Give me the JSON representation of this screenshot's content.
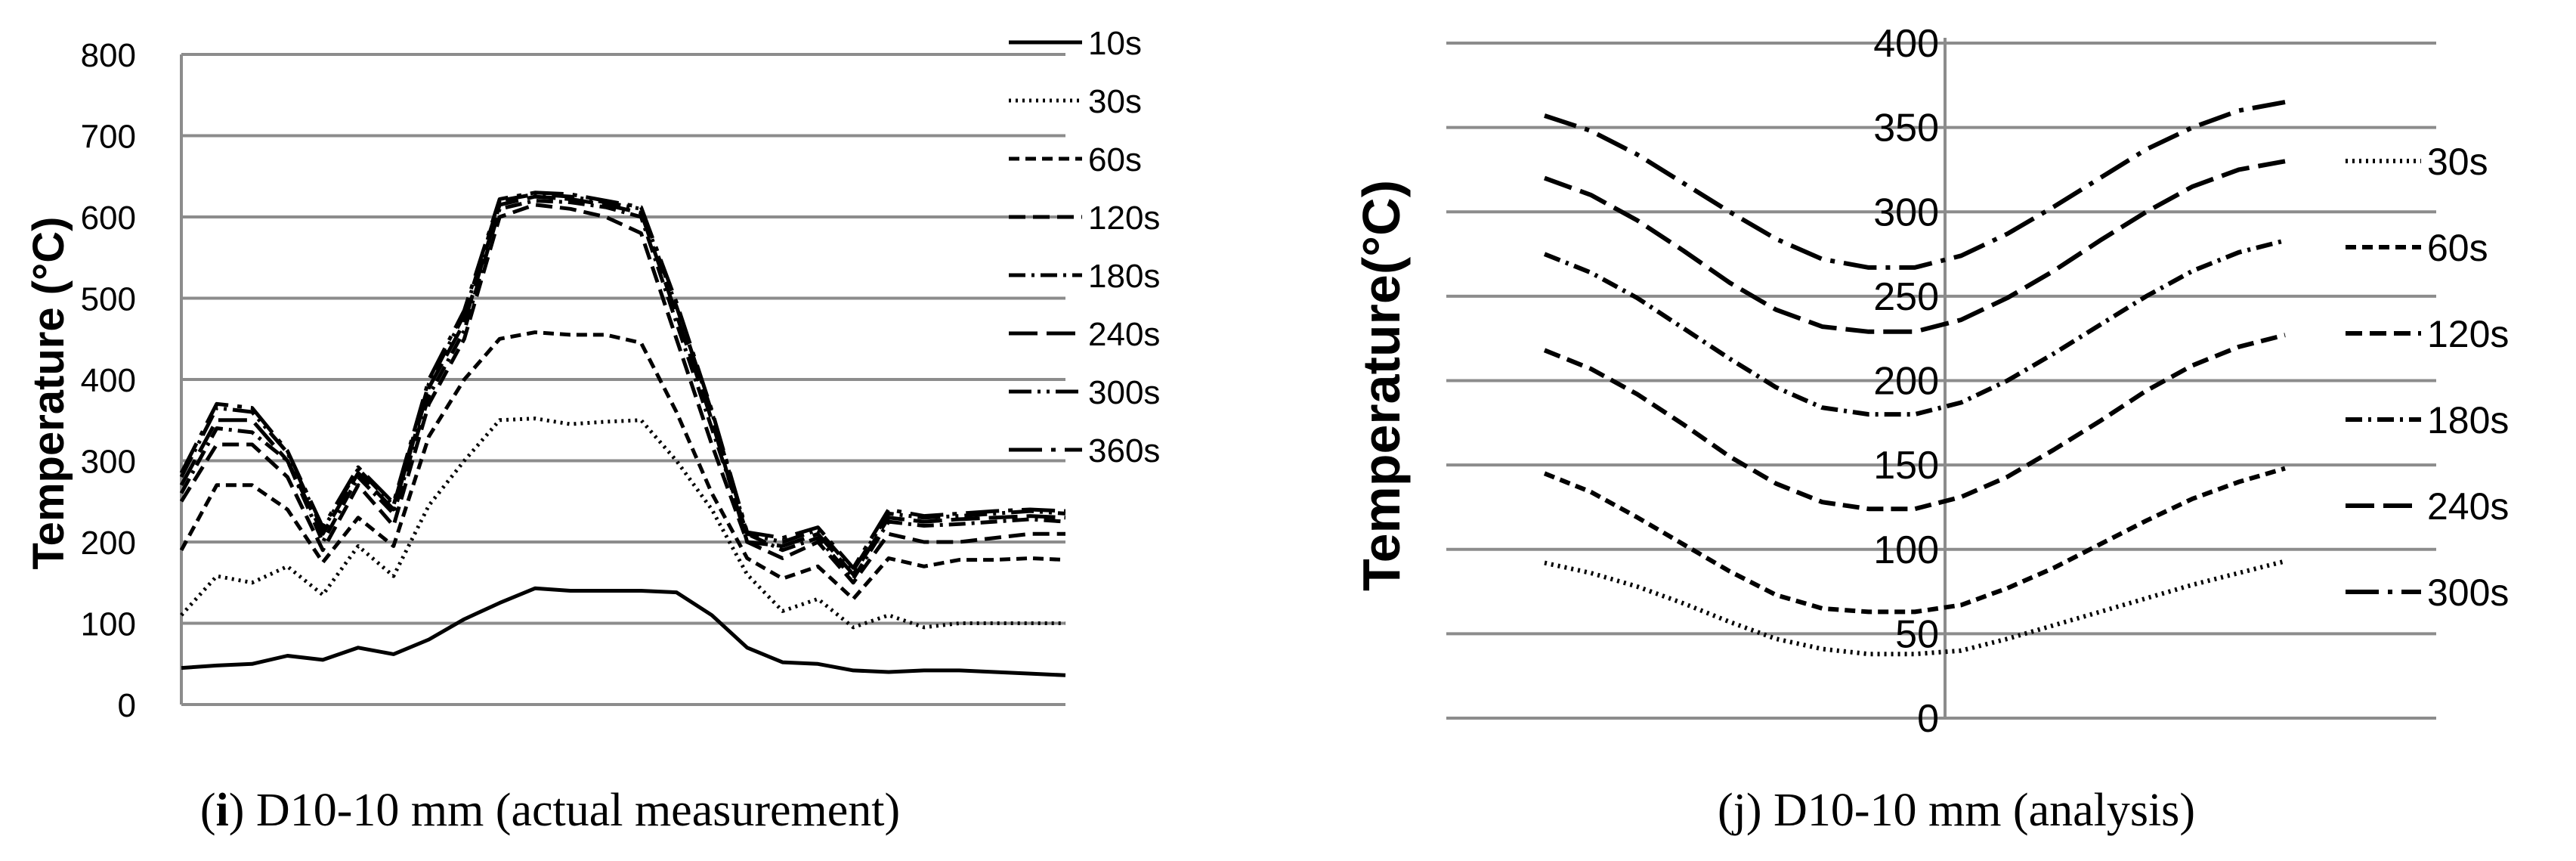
{
  "chart_data": [
    {
      "type": "line",
      "caption_prefix": "i",
      "caption": " D10-10 mm (actual measurement)",
      "ylabel": "Temperature (°C)",
      "xlabel": "",
      "ylim": [
        0,
        800
      ],
      "yticks": [
        "0",
        "100",
        "200",
        "300",
        "400",
        "500",
        "600",
        "700",
        "800"
      ],
      "x": [
        0,
        4,
        8,
        12,
        16,
        20,
        24,
        28,
        32,
        36,
        40,
        44,
        48,
        52,
        56,
        60,
        64,
        68,
        72,
        76,
        80,
        84,
        88,
        92,
        96,
        100
      ],
      "grid": true,
      "legend_position": "right",
      "series": [
        {
          "name": "10s",
          "dash": "solid",
          "values": [
            45,
            48,
            50,
            60,
            55,
            70,
            62,
            80,
            105,
            125,
            143,
            140,
            140,
            140,
            138,
            110,
            70,
            52,
            50,
            42,
            40,
            42,
            42,
            40,
            38,
            36
          ]
        },
        {
          "name": "30s",
          "dash": "dot",
          "values": [
            110,
            158,
            150,
            170,
            135,
            195,
            158,
            245,
            300,
            350,
            352,
            345,
            348,
            350,
            300,
            240,
            160,
            115,
            130,
            95,
            110,
            95,
            100,
            100,
            100,
            100
          ]
        },
        {
          "name": "60s",
          "dash": "dash-short",
          "values": [
            190,
            270,
            270,
            240,
            175,
            230,
            195,
            330,
            400,
            450,
            458,
            455,
            455,
            445,
            360,
            260,
            180,
            155,
            170,
            130,
            180,
            170,
            178,
            178,
            180,
            178
          ]
        },
        {
          "name": "120s",
          "dash": "dash-medium",
          "values": [
            250,
            320,
            320,
            280,
            190,
            270,
            220,
            370,
            450,
            600,
            615,
            610,
            600,
            580,
            450,
            320,
            200,
            180,
            200,
            150,
            210,
            200,
            200,
            205,
            210,
            210
          ]
        },
        {
          "name": "180s",
          "dash": "dash-dot",
          "values": [
            260,
            340,
            335,
            300,
            200,
            280,
            235,
            380,
            460,
            610,
            620,
            618,
            612,
            600,
            470,
            340,
            210,
            190,
            205,
            155,
            225,
            220,
            222,
            225,
            228,
            225
          ]
        },
        {
          "name": "240s",
          "dash": "dash-long",
          "values": [
            270,
            350,
            350,
            300,
            210,
            285,
            240,
            390,
            470,
            615,
            625,
            622,
            615,
            605,
            480,
            350,
            200,
            195,
            210,
            160,
            230,
            225,
            228,
            230,
            232,
            230
          ]
        },
        {
          "name": "300s",
          "dash": "dash-dot-dot",
          "values": [
            280,
            365,
            360,
            310,
            215,
            290,
            245,
            395,
            480,
            620,
            628,
            625,
            618,
            610,
            490,
            360,
            210,
            200,
            215,
            165,
            235,
            230,
            232,
            235,
            238,
            235
          ]
        },
        {
          "name": "360s",
          "dash": "dash-dot-long",
          "values": [
            285,
            370,
            365,
            312,
            218,
            292,
            248,
            400,
            485,
            622,
            630,
            628,
            620,
            612,
            495,
            362,
            212,
            205,
            218,
            168,
            240,
            232,
            235,
            238,
            240,
            238
          ]
        }
      ]
    },
    {
      "type": "line",
      "caption": "(j) D10-10 mm (analysis)",
      "ylabel": "Temperature(°C)",
      "xlabel": "",
      "ylim": [
        0,
        400
      ],
      "yticks": [
        "0",
        "50",
        "100",
        "150",
        "200",
        "250",
        "300",
        "350",
        "400"
      ],
      "x": [
        0,
        1,
        2,
        3,
        4,
        5,
        6,
        7,
        8,
        9,
        10,
        11,
        12,
        13,
        14,
        15,
        16
      ],
      "grid": true,
      "legend_position": "right",
      "series": [
        {
          "name": "30s",
          "dash": "dot",
          "values": [
            92,
            86,
            78,
            68,
            57,
            47,
            41,
            38,
            38,
            40,
            47,
            55,
            63,
            71,
            79,
            86,
            93
          ]
        },
        {
          "name": "60s",
          "dash": "dash-short",
          "values": [
            145,
            134,
            119,
            103,
            87,
            73,
            65,
            63,
            63,
            67,
            77,
            89,
            103,
            117,
            130,
            140,
            148
          ]
        },
        {
          "name": "120s",
          "dash": "dash-medium",
          "values": [
            218,
            207,
            192,
            174,
            155,
            139,
            128,
            124,
            124,
            131,
            143,
            159,
            176,
            194,
            209,
            220,
            227
          ]
        },
        {
          "name": "180s",
          "dash": "dash-dot",
          "values": [
            275,
            264,
            249,
            231,
            213,
            196,
            184,
            180,
            180,
            187,
            200,
            216,
            233,
            250,
            265,
            276,
            283
          ]
        },
        {
          "name": "240s",
          "dash": "dash-long",
          "values": [
            320,
            310,
            295,
            277,
            258,
            242,
            232,
            229,
            229,
            236,
            249,
            265,
            283,
            300,
            315,
            325,
            330
          ]
        },
        {
          "name": "300s",
          "dash": "dash-dot-long",
          "values": [
            357,
            348,
            334,
            317,
            300,
            284,
            272,
            267,
            267,
            274,
            287,
            303,
            320,
            337,
            350,
            360,
            365
          ]
        }
      ]
    }
  ]
}
